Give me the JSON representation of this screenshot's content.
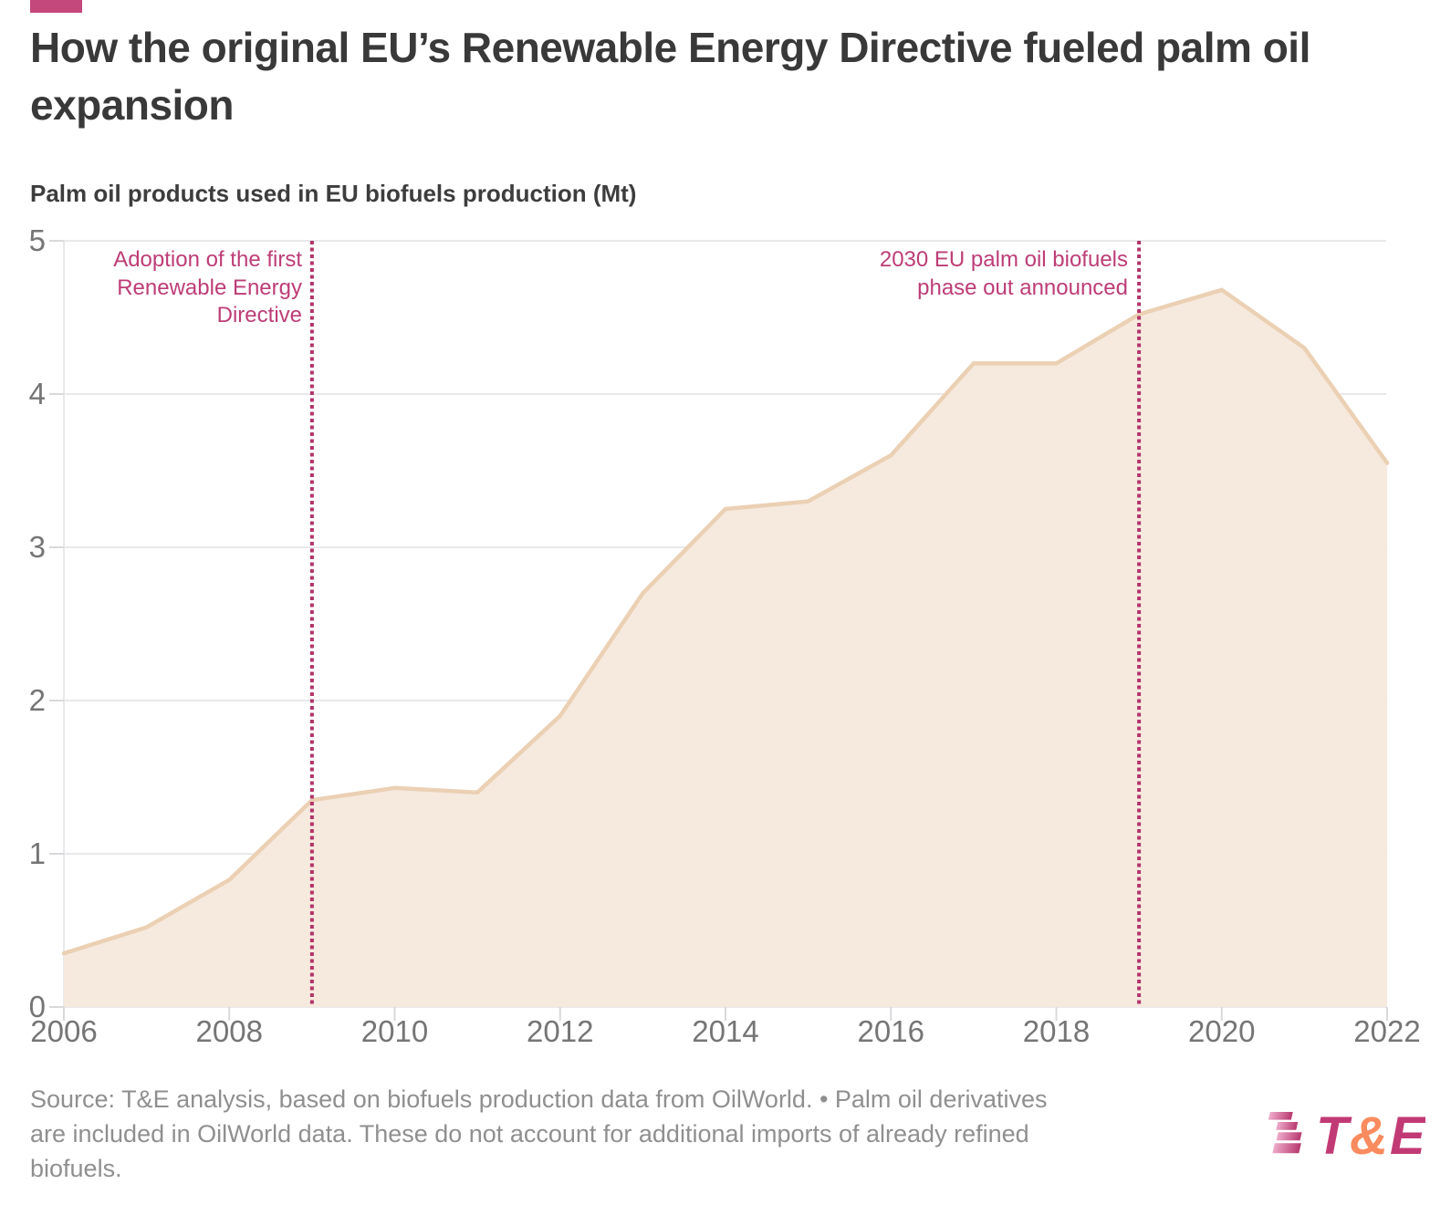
{
  "accent_bar_color": "#c4487c",
  "header": {
    "title": "How the original EU’s Renewable Energy Directive fueled palm oil expansion",
    "subtitle": "Palm oil products used in EU biofuels production (Mt)"
  },
  "chart_data": {
    "type": "area",
    "title": "How the original EU’s Renewable Energy Directive fueled palm oil expansion",
    "ylabel": "Palm oil products used in EU biofuels production (Mt)",
    "x": [
      2006,
      2007,
      2008,
      2009,
      2010,
      2011,
      2012,
      2013,
      2014,
      2015,
      2016,
      2017,
      2018,
      2019,
      2020,
      2021,
      2022
    ],
    "values": [
      0.35,
      0.52,
      0.83,
      1.35,
      1.43,
      1.4,
      1.9,
      2.7,
      3.25,
      3.3,
      3.6,
      4.2,
      4.2,
      4.52,
      4.68,
      4.3,
      3.55
    ],
    "xlim": [
      2006,
      2022
    ],
    "ylim": [
      0,
      5
    ],
    "xticks": [
      2006,
      2008,
      2010,
      2012,
      2014,
      2016,
      2018,
      2020,
      2022
    ],
    "yticks": [
      0,
      1,
      2,
      3,
      4,
      5
    ],
    "grid": true,
    "legend": false,
    "colors": {
      "area_fill": "#f5e7db",
      "area_stroke": "#ebd0b4",
      "gridline": "#e9e9ec",
      "tick": "#d9d9dc",
      "axis_label": "#757575",
      "annotation_text": "#bd3d76",
      "annotation_line": "#b2336b"
    },
    "annotations": [
      {
        "x": 2009,
        "lines": [
          "Adoption of the first",
          "Renewable Energy",
          "Directive"
        ]
      },
      {
        "x": 2019,
        "lines": [
          "2030 EU palm oil biofuels",
          "phase out announced"
        ]
      }
    ]
  },
  "footer": {
    "source_lines": [
      "Source: T&E analysis, based on biofuels production data from OilWorld. • Palm oil derivatives",
      "are included in OilWorld data. These do not account for additional imports of already refined",
      "biofuels."
    ],
    "logo": {
      "t": "T",
      "amp": "&",
      "e": "E",
      "pink": "#c23a75",
      "orange": "#f98b5e"
    }
  }
}
